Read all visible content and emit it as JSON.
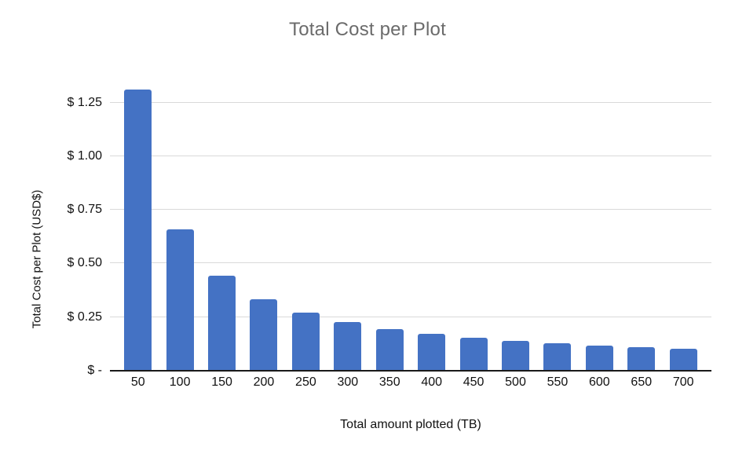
{
  "chart_data": {
    "type": "bar",
    "title": "Total Cost per Plot",
    "xlabel": "Total amount plotted (TB)",
    "ylabel": "Total Cost per Plot (USD$)",
    "categories": [
      "50",
      "100",
      "150",
      "200",
      "250",
      "300",
      "350",
      "400",
      "450",
      "500",
      "550",
      "600",
      "650",
      "700"
    ],
    "values": [
      1.31,
      0.66,
      0.443,
      0.335,
      0.27,
      0.227,
      0.196,
      0.173,
      0.154,
      0.14,
      0.128,
      0.118,
      0.11,
      0.103
    ],
    "y_ticks": [
      {
        "value": 0,
        "label": "$ -"
      },
      {
        "value": 0.25,
        "label": "$ 0.25"
      },
      {
        "value": 0.5,
        "label": "$ 0.50"
      },
      {
        "value": 0.75,
        "label": "$ 0.75"
      },
      {
        "value": 1.0,
        "label": "$ 1.00"
      },
      {
        "value": 1.25,
        "label": "$ 1.25"
      }
    ],
    "ylim": [
      0,
      1.38
    ],
    "grid": true,
    "legend": false,
    "colors": {
      "bar": "#4472C4",
      "gridline": "#D9D9D9",
      "axis_line": "#1a1a1a",
      "title_text": "#6b6b6b",
      "axis_text": "#111111"
    }
  }
}
